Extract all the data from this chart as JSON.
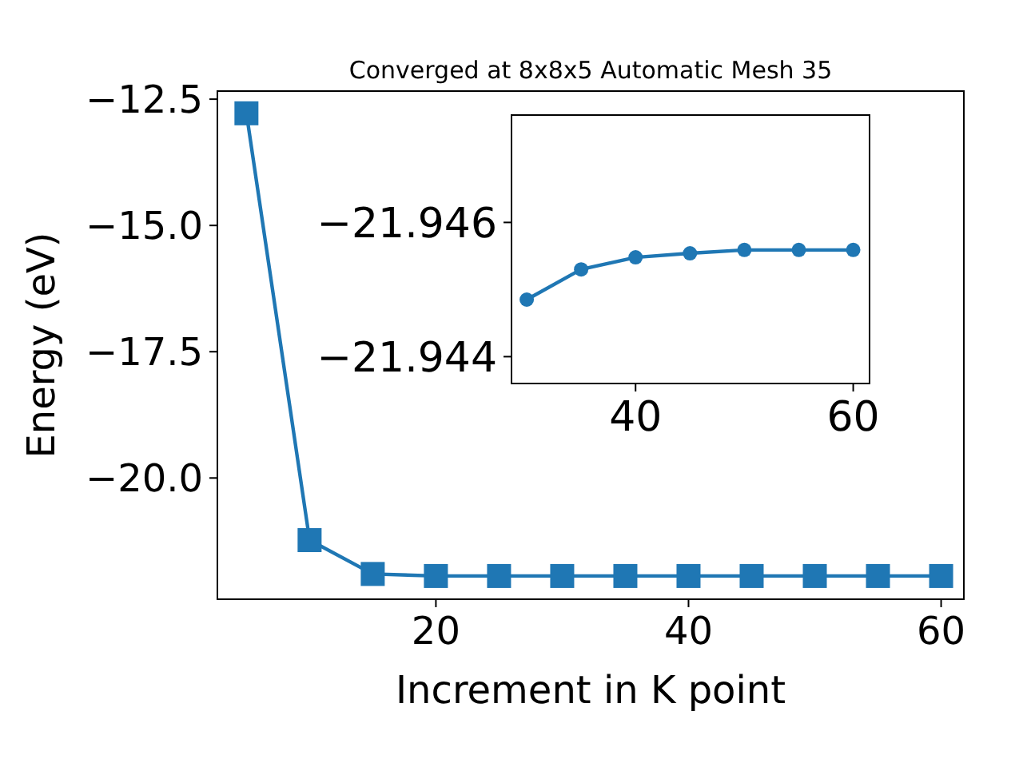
{
  "chart_data": [
    {
      "type": "line",
      "title": "Converged at 8x8x5 Automatic Mesh 35",
      "xlabel": "Increment in K point",
      "ylabel": "Energy (eV)",
      "marker": "square",
      "color": "#1f77b4",
      "x": [
        5,
        10,
        15,
        20,
        25,
        30,
        35,
        40,
        45,
        50,
        55,
        60
      ],
      "values": [
        -12.78,
        -21.23,
        -21.9,
        -21.94,
        -21.94,
        -21.94,
        -21.94,
        -21.94,
        -21.94,
        -21.94,
        -21.94,
        -21.94
      ],
      "xlim": [
        2.7,
        61.8
      ],
      "ylim": [
        -22.4,
        -12.34
      ],
      "xticks": [
        20,
        40,
        60
      ],
      "yticks": [
        -12.5,
        {
          "value": -15,
          "label": "−15.0"
        },
        -17.5,
        {
          "value": -20,
          "label": "−20.0"
        }
      ]
    },
    {
      "type": "line",
      "marker": "circle",
      "color": "#1f77b4",
      "x": [
        30,
        35,
        40,
        45,
        50,
        55,
        60
      ],
      "values": [
        -21.94485,
        -21.9453,
        -21.94548,
        -21.94554,
        -21.94559,
        -21.94559,
        -21.94559
      ],
      "xlim": [
        28.6,
        61.5
      ],
      "ylim": [
        -21.9436,
        -21.9476
      ],
      "xticks": [
        40,
        60
      ],
      "yticks": [
        -21.946,
        -21.944
      ]
    }
  ]
}
